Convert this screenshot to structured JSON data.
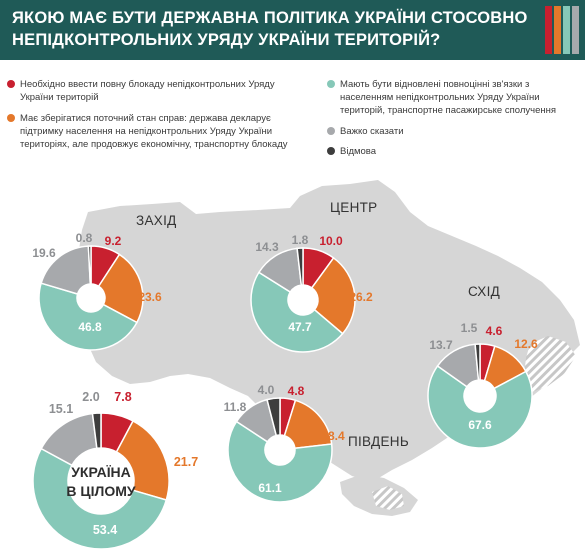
{
  "header": {
    "title_line1": "ЯКОЮ МАЄ БУТИ ДЕРЖАВНА ПОЛІТИКА УКРАЇНИ СТОСОВНО",
    "title_line2": "НЕПІДКОНТРОЛЬНИХ УРЯДУ УКРАЇНИ ТЕРИТОРІЙ?",
    "stripe_colors": [
      "#c8202f",
      "#e4782b",
      "#86c8b8",
      "#a7a9ac"
    ]
  },
  "legend": [
    {
      "text": "Необхідно ввести повну блокаду непідконтрольних Уряду України територій",
      "color": "#c8202f"
    },
    {
      "text": "Має зберігатися поточний стан справ: держава декларує підтримку населення на непідконтрольних Уряду України територіях, але продовжує економічну, транспортну блокаду",
      "color": "#e4782b"
    },
    {
      "text": "Мають бути відновлені повноцінні зв'язки з населенням непідконтрольних Уряду України територій, транспортне пасажирське сполучення",
      "color": "#86c8b8"
    },
    {
      "text": "Важко сказати",
      "color": "#a7a9ac"
    },
    {
      "text": "Відмова",
      "color": "#3d3d3d"
    }
  ],
  "regions": {
    "west": "ЗАХІД",
    "center": "ЦЕНТР",
    "east": "СХІД",
    "south": "ПІВДЕНЬ",
    "total_line1": "УКРАЇНА",
    "total_line2": "В ЦІЛОМУ"
  },
  "chart_data": {
    "type": "pie",
    "variant": "donut",
    "categories": [
      "Необхідно ввести повну блокаду непідконтрольних Уряду України територій",
      "Має зберігатися поточний стан справ: держава декларує підтримку населення на непідконтрольних Уряду України територіях, але продовжує економічну, транспортну блокаду",
      "Мають бути відновлені повноцінні зв'язки з населенням непідконтрольних Уряду України територій, транспортне пасажирське сполучення",
      "Важко сказати",
      "Відмова"
    ],
    "colors": [
      "#c8202f",
      "#e4782b",
      "#86c8b8",
      "#a7a9ac",
      "#3d3d3d"
    ],
    "label_colors": [
      "#c8202f",
      "#e4782b",
      "#ffffff",
      "#8d8f92",
      "#8d8f92"
    ],
    "series": [
      {
        "name": "ЗАХІД",
        "values": [
          9.2,
          23.6,
          46.8,
          19.6,
          0.8
        ]
      },
      {
        "name": "ЦЕНТР",
        "values": [
          10.0,
          26.2,
          47.7,
          14.3,
          1.8
        ]
      },
      {
        "name": "СХІД",
        "values": [
          4.6,
          12.6,
          67.6,
          13.7,
          1.5
        ]
      },
      {
        "name": "ПІВДЕНЬ",
        "values": [
          4.8,
          18.4,
          61.1,
          11.8,
          4.0
        ]
      },
      {
        "name": "УКРАЇНА В ЦІЛОМУ",
        "values": [
          7.8,
          21.7,
          53.4,
          15.1,
          2.0
        ]
      }
    ]
  }
}
